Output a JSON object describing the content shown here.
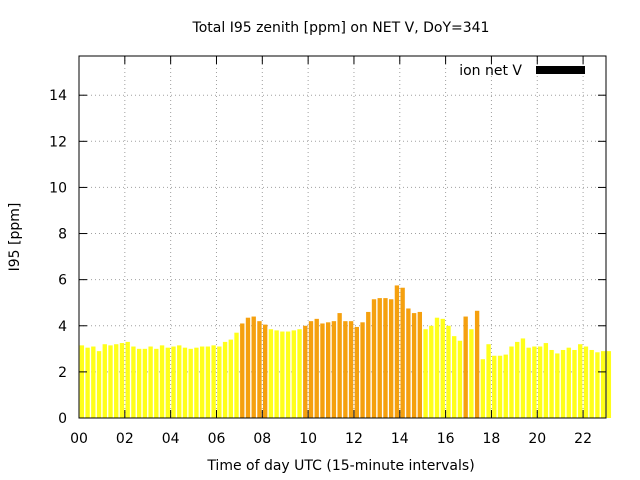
{
  "chart_data": {
    "type": "bar",
    "title": "Total I95 zenith [ppm] on NET V, DoY=341",
    "xlabel": "Time of day UTC (15-minute intervals)",
    "ylabel": "I95 [ppm]",
    "x_unit": "hours UTC",
    "bar_width_hours": 0.19,
    "xlim": [
      0,
      23
    ],
    "ylim": [
      0,
      15.7
    ],
    "xticks": [
      0,
      2,
      4,
      6,
      8,
      10,
      12,
      14,
      16,
      18,
      20,
      22
    ],
    "xtick_labels": [
      "00",
      "02",
      "04",
      "06",
      "08",
      "10",
      "12",
      "14",
      "16",
      "18",
      "20",
      "22"
    ],
    "yticks": [
      0,
      2,
      4,
      6,
      8,
      10,
      12,
      14
    ],
    "ytick_labels": [
      "0",
      "2",
      "4",
      "6",
      "8",
      "10",
      "12",
      "14"
    ],
    "grid": true,
    "legend": {
      "label": "ion net V",
      "placement": "top-right",
      "swatch_color": "#000000"
    },
    "colors": {
      "low": "#ffff1a",
      "mid": "#f5a00e"
    },
    "values": [
      3.15,
      3.05,
      3.1,
      2.9,
      3.2,
      3.15,
      3.2,
      3.25,
      3.3,
      3.1,
      3.0,
      3.0,
      3.1,
      3.0,
      3.15,
      3.05,
      3.1,
      3.15,
      3.05,
      3.0,
      3.05,
      3.1,
      3.1,
      3.15,
      3.1,
      3.3,
      3.4,
      3.7,
      4.1,
      4.35,
      4.4,
      4.2,
      4.05,
      3.85,
      3.8,
      3.75,
      3.75,
      3.8,
      3.85,
      4.0,
      4.2,
      4.3,
      4.1,
      4.15,
      4.2,
      4.55,
      4.2,
      4.2,
      3.95,
      4.15,
      4.6,
      5.15,
      5.2,
      5.2,
      5.15,
      5.75,
      5.65,
      4.75,
      4.55,
      4.6,
      3.85,
      4.0,
      4.35,
      4.3,
      4.0,
      3.55,
      3.35,
      4.4,
      3.85,
      4.65,
      2.55,
      3.2,
      2.7,
      2.7,
      2.75,
      3.1,
      3.3,
      3.45,
      3.05,
      3.1,
      3.1,
      3.25,
      2.95,
      2.8,
      2.95,
      3.05,
      2.95,
      3.2,
      3.1,
      2.95,
      2.85,
      2.9,
      2.9
    ],
    "bar_colors": [
      "low",
      "low",
      "low",
      "low",
      "low",
      "low",
      "low",
      "low",
      "low",
      "low",
      "low",
      "low",
      "low",
      "low",
      "low",
      "low",
      "low",
      "low",
      "low",
      "low",
      "low",
      "low",
      "low",
      "low",
      "low",
      "low",
      "low",
      "low",
      "mid",
      "mid",
      "mid",
      "mid",
      "mid",
      "low",
      "low",
      "low",
      "low",
      "low",
      "low",
      "mid",
      "mid",
      "mid",
      "mid",
      "mid",
      "mid",
      "mid",
      "mid",
      "mid",
      "mid",
      "mid",
      "mid",
      "mid",
      "mid",
      "mid",
      "mid",
      "mid",
      "mid",
      "mid",
      "mid",
      "mid",
      "low",
      "low",
      "low",
      "low",
      "low",
      "low",
      "low",
      "mid",
      "low",
      "mid",
      "low",
      "low",
      "low",
      "low",
      "low",
      "low",
      "low",
      "low",
      "low",
      "low",
      "low",
      "low",
      "low",
      "low",
      "low",
      "low",
      "low",
      "low",
      "low",
      "low",
      "low",
      "low",
      "low"
    ]
  }
}
